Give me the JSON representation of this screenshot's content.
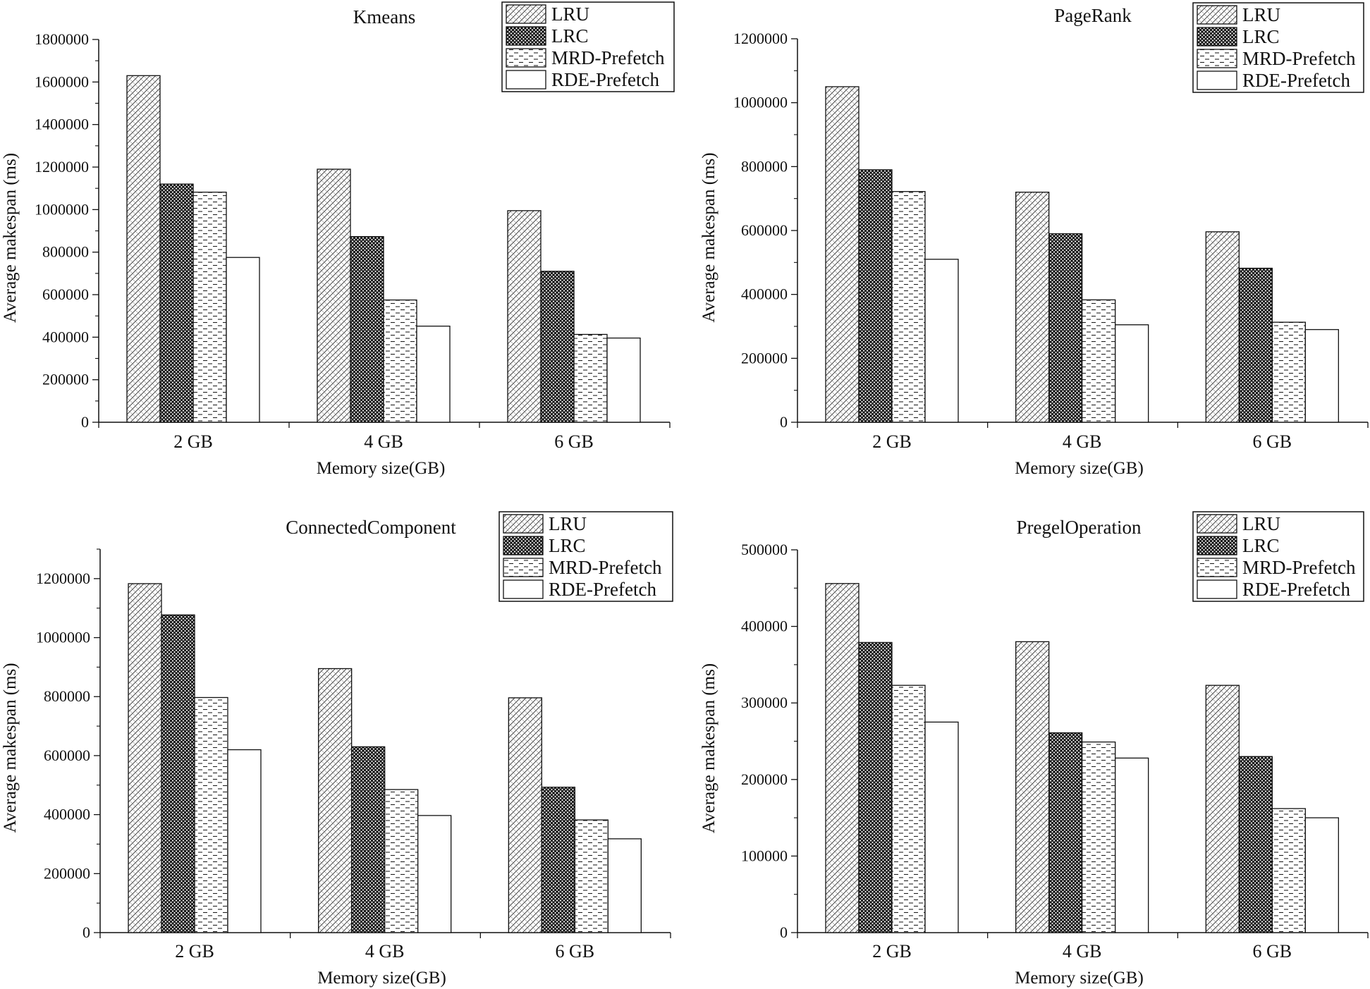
{
  "chart_data": [
    {
      "type": "bar",
      "title": "Kmeans",
      "xlabel": "Memory size(GB)",
      "ylabel": "Average makespan (ms)",
      "categories": [
        "2 GB",
        "4 GB",
        "6 GB"
      ],
      "ylim": [
        0,
        1800000
      ],
      "yticks": [
        0,
        200000,
        400000,
        600000,
        800000,
        1000000,
        1200000,
        1400000,
        1600000,
        1800000
      ],
      "tick_labels": [
        "0",
        "200000",
        "400000",
        "600000",
        "800000",
        "1000000",
        "1200000",
        "1400000",
        "1600000",
        "1800000"
      ],
      "legend_position": "top-right",
      "series": [
        {
          "name": "LRU",
          "values": [
            1630000,
            1190000,
            995000
          ]
        },
        {
          "name": "LRC",
          "values": [
            1120000,
            873000,
            710000
          ]
        },
        {
          "name": "MRD-Prefetch",
          "values": [
            1082000,
            575000,
            413000
          ]
        },
        {
          "name": "RDE-Prefetch",
          "values": [
            775000,
            452000,
            396000
          ]
        }
      ]
    },
    {
      "type": "bar",
      "title": "PageRank",
      "xlabel": "Memory size(GB)",
      "ylabel": "Average makespan (ms)",
      "categories": [
        "2 GB",
        "4 GB",
        "6 GB"
      ],
      "ylim": [
        0,
        1200000
      ],
      "yticks": [
        0,
        200000,
        400000,
        600000,
        800000,
        1000000,
        1200000
      ],
      "tick_labels": [
        "0",
        "200000",
        "400000",
        "600000",
        "800000",
        "1000000",
        "1200000"
      ],
      "legend_position": "top-right",
      "series": [
        {
          "name": "LRU",
          "values": [
            1050000,
            720000,
            596000
          ]
        },
        {
          "name": "LRC",
          "values": [
            790000,
            590000,
            482000
          ]
        },
        {
          "name": "MRD-Prefetch",
          "values": [
            722000,
            383000,
            313000
          ]
        },
        {
          "name": "RDE-Prefetch",
          "values": [
            510000,
            305000,
            290000
          ]
        }
      ]
    },
    {
      "type": "bar",
      "title": "ConnectedComponent",
      "xlabel": "Memory size(GB)",
      "ylabel": "Average makespan (ms)",
      "categories": [
        "2 GB",
        "4 GB",
        "6 GB"
      ],
      "ylim": [
        0,
        1300000
      ],
      "yticks": [
        0,
        200000,
        400000,
        600000,
        800000,
        1000000,
        1200000
      ],
      "tick_labels": [
        "0",
        "200000",
        "400000",
        "600000",
        "800000",
        "1000000",
        "1200000"
      ],
      "legend_position": "top-right",
      "series": [
        {
          "name": "LRU",
          "values": [
            1183000,
            895000,
            796000
          ]
        },
        {
          "name": "LRC",
          "values": [
            1077000,
            630000,
            493000
          ]
        },
        {
          "name": "MRD-Prefetch",
          "values": [
            797000,
            485000,
            382000
          ]
        },
        {
          "name": "RDE-Prefetch",
          "values": [
            620000,
            397000,
            318000
          ]
        }
      ]
    },
    {
      "type": "bar",
      "title": "PregelOperation",
      "xlabel": "Memory size(GB)",
      "ylabel": "Average makespan (ms)",
      "categories": [
        "2 GB",
        "4 GB",
        "6 GB"
      ],
      "ylim": [
        0,
        500000
      ],
      "yticks": [
        0,
        100000,
        200000,
        300000,
        400000,
        500000
      ],
      "tick_labels": [
        "0",
        "100000",
        "200000",
        "300000",
        "400000",
        "500000"
      ],
      "legend_position": "top-right",
      "series": [
        {
          "name": "LRU",
          "values": [
            456000,
            380000,
            323000
          ]
        },
        {
          "name": "LRC",
          "values": [
            379000,
            261000,
            230000
          ]
        },
        {
          "name": "MRD-Prefetch",
          "values": [
            323000,
            249000,
            162000
          ]
        },
        {
          "name": "RDE-Prefetch",
          "values": [
            275000,
            228000,
            150000
          ]
        }
      ]
    }
  ]
}
